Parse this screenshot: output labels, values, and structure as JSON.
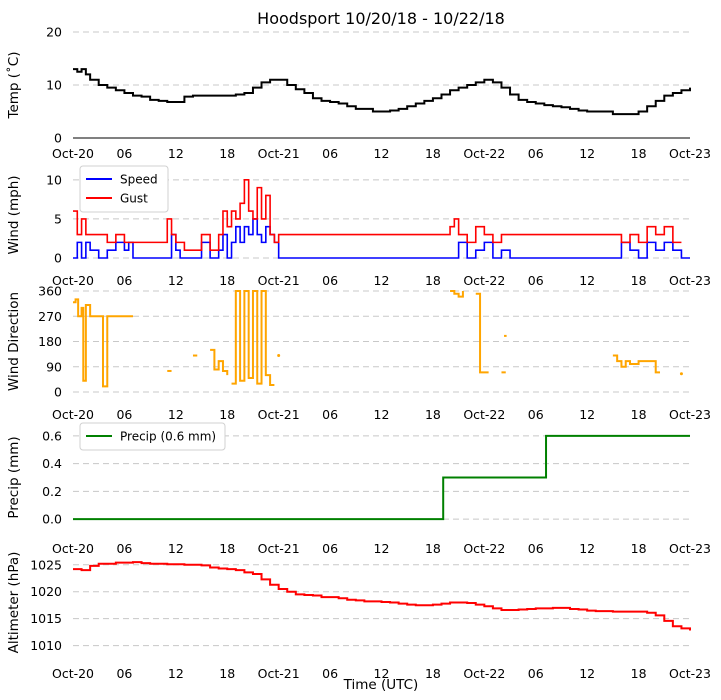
{
  "chart_data": {
    "type": "line",
    "title": "Hoodsport 10/20/18 - 10/22/18",
    "xlabel": "Time (UTC)",
    "x_tick_labels": [
      "Oct-20",
      "06",
      "12",
      "18",
      "Oct-21",
      "06",
      "12",
      "18",
      "Oct-22",
      "06",
      "12",
      "18",
      "Oct-23"
    ],
    "x_range_hours": [
      0,
      72
    ],
    "colors": {
      "temp": "#000000",
      "speed": "#0000ff",
      "gust": "#ff0000",
      "dir": "#ffa500",
      "precip": "#008000",
      "alt": "#ff0000",
      "grid": "#c8c8c8"
    },
    "panels": [
      {
        "id": "temp",
        "ylabel": "Temp ($^\\circ$C)",
        "ylabel_display": "Temp (˚C)",
        "ylim": [
          0,
          20
        ],
        "yticks": [
          0,
          10,
          20
        ],
        "series": [
          {
            "name": "Temp",
            "color": "#000000",
            "x": [
              0,
              0.5,
              1,
              1.5,
              2,
              3,
              4,
              5,
              6,
              7,
              8,
              9,
              10,
              11,
              12,
              13,
              14,
              15,
              16,
              17,
              18,
              19,
              20,
              21,
              22,
              23,
              24,
              25,
              26,
              27,
              28,
              29,
              30,
              31,
              32,
              33,
              34,
              35,
              36,
              37,
              38,
              39,
              40,
              41,
              42,
              43,
              44,
              45,
              46,
              47,
              48,
              49,
              50,
              51,
              52,
              53,
              54,
              55,
              56,
              57,
              58,
              59,
              60,
              61,
              62,
              63,
              64,
              65,
              66,
              67,
              68,
              69,
              70,
              71,
              72
            ],
            "values": [
              13,
              12.5,
              13,
              12,
              11,
              10,
              9.5,
              9,
              8.5,
              8,
              7.8,
              7.2,
              7,
              6.8,
              6.8,
              7.8,
              8,
              8,
              8,
              8,
              8,
              8.2,
              8.5,
              9.5,
              10.5,
              11,
              11,
              10,
              9.2,
              8.5,
              7.5,
              7,
              6.8,
              6.5,
              6,
              5.5,
              5.5,
              5,
              5,
              5.2,
              5.5,
              6,
              6.5,
              7,
              7.5,
              8.2,
              9,
              9.5,
              10,
              10.5,
              11,
              10.5,
              9.5,
              8.2,
              7.2,
              6.8,
              6.5,
              6.2,
              6,
              5.8,
              5.5,
              5.2,
              5,
              5,
              5,
              4.5,
              4.5,
              4.5,
              5,
              6,
              7,
              8,
              8.5,
              9,
              9.5
            ]
          }
        ]
      },
      {
        "id": "wind",
        "ylabel": "Wind (mph)",
        "ylim": [
          0,
          11
        ],
        "yticks": [
          0,
          5,
          10
        ],
        "legend": {
          "placement": "top-left",
          "entries": [
            "Speed",
            "Gust"
          ]
        },
        "series": [
          {
            "name": "Speed",
            "color": "#0000ff",
            "x": [
              0,
              0.5,
              1,
              1.5,
              2,
              3,
              4,
              5,
              6,
              6.5,
              7,
              8,
              9,
              10,
              11,
              11.5,
              12,
              12.5,
              13,
              14,
              15,
              16,
              17,
              17.5,
              18,
              18.5,
              19,
              19.5,
              20,
              20.5,
              21,
              21.5,
              22,
              22.5,
              23,
              23.5,
              24,
              30,
              36,
              42,
              44,
              45,
              46,
              47,
              48,
              49,
              50,
              51,
              56,
              62,
              63,
              64,
              65,
              66,
              67,
              68,
              69,
              70,
              71,
              72
            ],
            "values": [
              0,
              2,
              0,
              2,
              1,
              0,
              1,
              2,
              1,
              2,
              0,
              0,
              0,
              0,
              0,
              3,
              1,
              0,
              0,
              0,
              2,
              0,
              1,
              3,
              0,
              2,
              4,
              2,
              4,
              3,
              5,
              3,
              2,
              4,
              3,
              2,
              0,
              0,
              0,
              0,
              0,
              2,
              0,
              1,
              2,
              0,
              1,
              0,
              0,
              0,
              0,
              2,
              1,
              0,
              2,
              1,
              2,
              1,
              0,
              0
            ]
          },
          {
            "name": "Gust",
            "color": "#ff0000",
            "x": [
              0,
              0.5,
              1,
              1.5,
              2,
              3,
              4,
              5,
              6,
              7,
              7.5,
              11,
              11.5,
              12,
              13,
              14,
              15,
              16,
              17,
              17.5,
              18,
              18.5,
              19,
              19.5,
              20,
              20.5,
              21,
              21.5,
              22,
              22.5,
              23,
              23.5,
              24,
              44,
              44.5,
              45,
              46,
              47,
              48,
              49,
              50,
              51,
              63,
              64,
              65,
              66,
              67,
              68,
              69,
              70,
              71
            ],
            "values": [
              6,
              3,
              5,
              3,
              3,
              3,
              2,
              3,
              2,
              2,
              2,
              5,
              3,
              2,
              1,
              1,
              3,
              1,
              3,
              6,
              4,
              6,
              5,
              7,
              10,
              6,
              5,
              9,
              5,
              8,
              3,
              2,
              3,
              4,
              5,
              3,
              2,
              4,
              3,
              2,
              3,
              3,
              3,
              2,
              3,
              2,
              4,
              3,
              4,
              2,
              2
            ]
          }
        ]
      },
      {
        "id": "dir",
        "ylabel": "Wind Direction",
        "ylim": [
          0,
          360
        ],
        "yticks": [
          0,
          90,
          180,
          270,
          360
        ],
        "series": [
          {
            "name": "Direction",
            "color": "#ffa500",
            "segments": [
              {
                "x": [
                  0,
                  0.3,
                  0.6,
                  1,
                  1.2,
                  1.5,
                  2,
                  2.5,
                  3,
                  3.5,
                  4,
                  5,
                  6,
                  7
                ],
                "values": [
                  320,
                  330,
                  270,
                  300,
                  40,
                  310,
                  270,
                  270,
                  270,
                  20,
                  270,
                  270,
                  270,
                  270
                ]
              },
              {
                "x": [
                  11,
                  11.5
                ],
                "values": [
                  75,
                  75
                ]
              },
              {
                "x": [
                  14,
                  14.5
                ],
                "values": [
                  130,
                  130
                ]
              },
              {
                "x": [
                  16,
                  16.5,
                  17,
                  17.5,
                  18
                ],
                "values": [
                  150,
                  80,
                  110,
                  75,
                  60
                ]
              },
              {
                "x": [
                  18.5,
                  19,
                  19.5,
                  20,
                  20.5,
                  21,
                  21.5,
                  22,
                  22.5,
                  23,
                  23.5
                ],
                "values": [
                  30,
                  360,
                  40,
                  360,
                  50,
                  360,
                  30,
                  360,
                  60,
                  25,
                  25
                ]
              },
              {
                "x": [
                  24
                ],
                "values": [
                  130
                ]
              },
              {
                "x": [
                  44,
                  44.5,
                  45,
                  45.5
                ],
                "values": [
                  360,
                  350,
                  340,
                  360
                ]
              },
              {
                "x": [
                  47,
                  47.5,
                  48,
                  48.5
                ],
                "values": [
                  350,
                  70,
                  70,
                  70
                ]
              },
              {
                "x": [
                  50,
                  50.5
                ],
                "values": [
                  70,
                  70
                ]
              },
              {
                "x": [
                  50.3,
                  50.6
                ],
                "values": [
                  200,
                  200
                ]
              },
              {
                "x": [
                  63,
                  63.5,
                  64,
                  64.5,
                  65,
                  66,
                  67,
                  68,
                  68.5
                ],
                "values": [
                  130,
                  110,
                  90,
                  110,
                  100,
                  110,
                  110,
                  70,
                  70
                ]
              },
              {
                "x": [
                  71
                ],
                "values": [
                  65
                ]
              }
            ]
          }
        ]
      },
      {
        "id": "precip",
        "ylabel": "Precip (mm)",
        "ylim": [
          -0.05,
          0.65
        ],
        "yticks": [
          0.0,
          0.2,
          0.4,
          0.6
        ],
        "legend": {
          "placement": "top-left",
          "entries": [
            "Precip (0.6 mm)"
          ]
        },
        "series": [
          {
            "name": "Precip (0.6 mm)",
            "color": "#008000",
            "x": [
              0,
              43.2,
              43.2,
              55.2,
              55.2,
              72
            ],
            "values": [
              0,
              0,
              0.3,
              0.3,
              0.6,
              0.6
            ]
          }
        ]
      },
      {
        "id": "alt",
        "ylabel": "Altimeter (hPa)",
        "ylim": [
          1009,
          1027
        ],
        "yticks": [
          1010,
          1015,
          1020,
          1025
        ],
        "series": [
          {
            "name": "Altimeter",
            "color": "#ff0000",
            "x": [
              0,
              1,
              2,
              3,
              4,
              5,
              6,
              7,
              8,
              9,
              10,
              11,
              12,
              13,
              14,
              15,
              16,
              17,
              18,
              19,
              20,
              21,
              22,
              23,
              24,
              25,
              26,
              27,
              28,
              29,
              30,
              31,
              32,
              33,
              34,
              35,
              36,
              37,
              38,
              39,
              40,
              41,
              42,
              43,
              44,
              45,
              46,
              47,
              48,
              49,
              50,
              51,
              52,
              53,
              54,
              55,
              56,
              57,
              58,
              59,
              60,
              61,
              62,
              63,
              64,
              65,
              66,
              67,
              68,
              69,
              70,
              71,
              72
            ],
            "values": [
              1024.2,
              1024,
              1024.8,
              1025.2,
              1025.2,
              1025.4,
              1025.4,
              1025.5,
              1025.3,
              1025.2,
              1025.2,
              1025.1,
              1025.1,
              1025,
              1025,
              1024.9,
              1024.5,
              1024.3,
              1024.2,
              1024,
              1023.6,
              1023.3,
              1022.3,
              1021.3,
              1020.5,
              1020,
              1019.5,
              1019.4,
              1019.3,
              1019,
              1019,
              1018.8,
              1018.5,
              1018.4,
              1018.2,
              1018.2,
              1018.1,
              1018,
              1017.8,
              1017.6,
              1017.5,
              1017.5,
              1017.6,
              1017.8,
              1018,
              1018,
              1017.9,
              1017.6,
              1017.3,
              1016.9,
              1016.6,
              1016.6,
              1016.7,
              1016.8,
              1016.9,
              1016.9,
              1017,
              1017,
              1016.8,
              1016.7,
              1016.5,
              1016.4,
              1016.4,
              1016.3,
              1016.3,
              1016.3,
              1016.3,
              1016.1,
              1015.6,
              1014.6,
              1013.6,
              1013.2,
              1012.8
            ]
          }
        ]
      }
    ]
  }
}
